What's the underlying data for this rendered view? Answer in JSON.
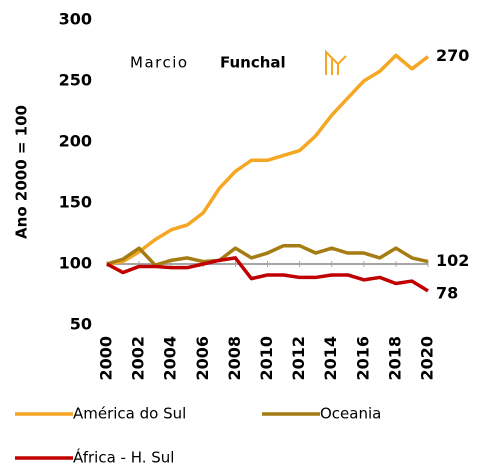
{
  "chart_data": {
    "type": "line",
    "y_axis_label": "Ano 2000 = 100",
    "logo": {
      "first": "Marcio",
      "second": "Funchal"
    },
    "x": [
      2000,
      2001,
      2002,
      2003,
      2004,
      2005,
      2006,
      2007,
      2008,
      2009,
      2010,
      2011,
      2012,
      2013,
      2014,
      2015,
      2016,
      2017,
      2018,
      2019,
      2020
    ],
    "xlim": [
      2000,
      2020
    ],
    "xticks": [
      2000,
      2002,
      2004,
      2006,
      2008,
      2010,
      2012,
      2014,
      2016,
      2018,
      2020
    ],
    "ylim": [
      50,
      300
    ],
    "yticks": [
      50,
      100,
      150,
      200,
      250,
      300
    ],
    "baseline": 100,
    "series": [
      {
        "name": "América do Sul",
        "color": "#f5a623",
        "values": [
          100,
          102,
          110,
          120,
          128,
          132,
          142,
          162,
          176,
          185,
          185,
          189,
          193,
          205,
          222,
          236,
          250,
          258,
          271,
          260,
          270
        ]
      },
      {
        "name": "Oceania",
        "color": "#a57c12",
        "values": [
          100,
          104,
          113,
          99,
          103,
          105,
          102,
          103,
          113,
          105,
          109,
          115,
          115,
          109,
          113,
          109,
          109,
          105,
          113,
          105,
          102
        ]
      },
      {
        "name": "África - H. Sul",
        "color": "#c00000",
        "values": [
          100,
          93,
          98,
          98,
          97,
          97,
          100,
          103,
          105,
          88,
          91,
          91,
          89,
          89,
          91,
          91,
          87,
          89,
          84,
          86,
          78
        ]
      }
    ]
  }
}
